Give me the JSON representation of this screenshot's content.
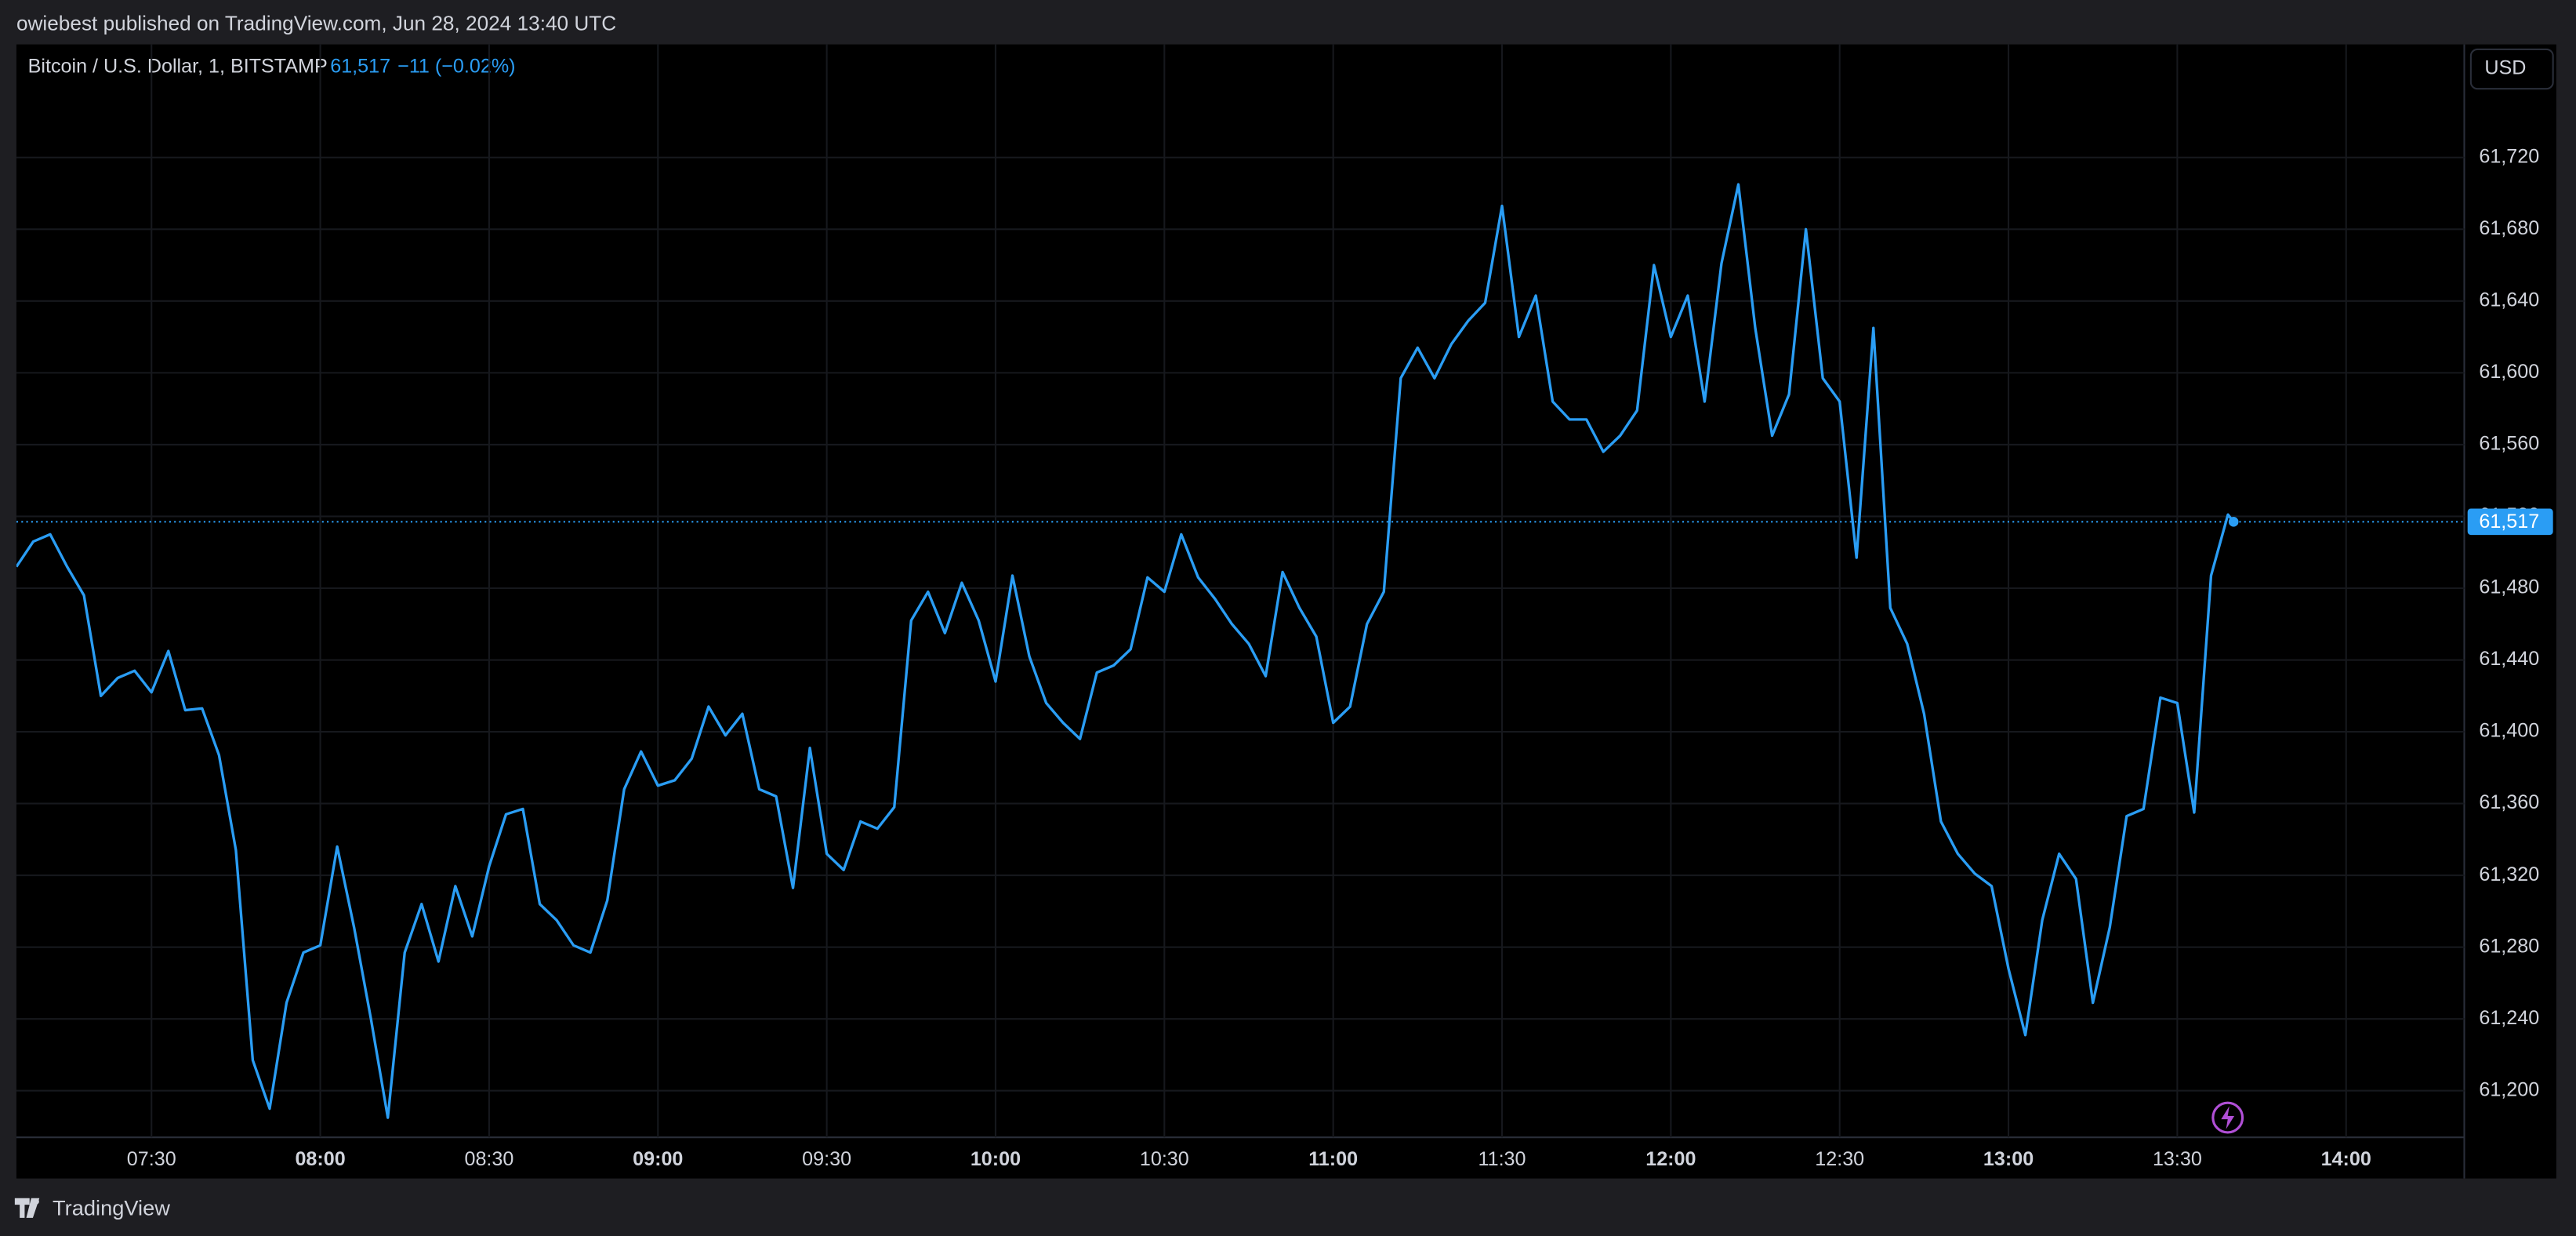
{
  "header": {
    "publisher": "owiebest published on TradingView.com, Jun 28, 2024 13:40 UTC"
  },
  "footer": {
    "brand": "TradingView"
  },
  "chart_data": {
    "type": "line",
    "symbol": "Bitcoin / U.S. Dollar, 1, BITSTAMP",
    "change": "−11 (−0.02%)",
    "currency": "USD",
    "color": "#2a9df4",
    "grid": true,
    "last_price": {
      "value": 61517,
      "label": "61,517"
    },
    "xlim": [
      "07:06",
      "14:21"
    ],
    "xticks": [
      "07:30",
      "08:00",
      "08:30",
      "09:00",
      "09:30",
      "10:00",
      "10:30",
      "11:00",
      "11:30",
      "12:00",
      "12:30",
      "13:00",
      "13:30",
      "14:00"
    ],
    "ylim": [
      61174,
      61783
    ],
    "yticks": [
      {
        "value": 61200,
        "label": "61,200"
      },
      {
        "value": 61240,
        "label": "61,240"
      },
      {
        "value": 61280,
        "label": "61,280"
      },
      {
        "value": 61320,
        "label": "61,320"
      },
      {
        "value": 61360,
        "label": "61,360"
      },
      {
        "value": 61400,
        "label": "61,400"
      },
      {
        "value": 61440,
        "label": "61,440"
      },
      {
        "value": 61480,
        "label": "61,480"
      },
      {
        "value": 61520,
        "label": "61,520"
      },
      {
        "value": 61560,
        "label": "61,560"
      },
      {
        "value": 61600,
        "label": "61,600"
      },
      {
        "value": 61640,
        "label": "61,640"
      },
      {
        "value": 61680,
        "label": "61,680"
      },
      {
        "value": 61720,
        "label": "61,720"
      }
    ],
    "x": [
      "07:06",
      "07:09",
      "07:12",
      "07:15",
      "07:18",
      "07:21",
      "07:24",
      "07:27",
      "07:30",
      "07:33",
      "07:36",
      "07:39",
      "07:42",
      "07:45",
      "07:48",
      "07:51",
      "07:54",
      "07:57",
      "08:00",
      "08:03",
      "08:06",
      "08:09",
      "08:12",
      "08:15",
      "08:18",
      "08:21",
      "08:24",
      "08:27",
      "08:30",
      "08:33",
      "08:36",
      "08:39",
      "08:42",
      "08:45",
      "08:48",
      "08:51",
      "08:54",
      "08:57",
      "09:00",
      "09:03",
      "09:06",
      "09:09",
      "09:12",
      "09:15",
      "09:18",
      "09:21",
      "09:24",
      "09:27",
      "09:30",
      "09:33",
      "09:36",
      "09:39",
      "09:42",
      "09:45",
      "09:48",
      "09:51",
      "09:54",
      "09:57",
      "10:00",
      "10:03",
      "10:06",
      "10:09",
      "10:12",
      "10:15",
      "10:18",
      "10:21",
      "10:24",
      "10:27",
      "10:30",
      "10:33",
      "10:36",
      "10:39",
      "10:42",
      "10:45",
      "10:48",
      "10:51",
      "10:54",
      "10:57",
      "11:00",
      "11:03",
      "11:06",
      "11:09",
      "11:12",
      "11:15",
      "11:18",
      "11:21",
      "11:24",
      "11:27",
      "11:30",
      "11:33",
      "11:36",
      "11:39",
      "11:42",
      "11:45",
      "11:48",
      "11:51",
      "11:54",
      "11:57",
      "12:00",
      "12:03",
      "12:06",
      "12:09",
      "12:12",
      "12:15",
      "12:18",
      "12:21",
      "12:24",
      "12:27",
      "12:30",
      "12:33",
      "12:36",
      "12:39",
      "12:42",
      "12:45",
      "12:48",
      "12:51",
      "12:54",
      "12:57",
      "13:00",
      "13:03",
      "13:06",
      "13:09",
      "13:12",
      "13:15",
      "13:18",
      "13:21",
      "13:24",
      "13:27",
      "13:30",
      "13:33",
      "13:36",
      "13:39",
      "13:40"
    ],
    "values": [
      61492,
      61506,
      61510,
      61492,
      61476,
      61420,
      61430,
      61434,
      61422,
      61445,
      61412,
      61413,
      61387,
      61334,
      61217,
      61190,
      61249,
      61277,
      61281,
      61336,
      61291,
      61240,
      61185,
      61277,
      61304,
      61272,
      61314,
      61286,
      61325,
      61354,
      61357,
      61304,
      61295,
      61281,
      61277,
      61306,
      61368,
      61389,
      61370,
      61373,
      61385,
      61414,
      61398,
      61410,
      61368,
      61364,
      61313,
      61391,
      61332,
      61323,
      61350,
      61346,
      61358,
      61462,
      61478,
      61455,
      61483,
      61462,
      61428,
      61487,
      61442,
      61416,
      61405,
      61396,
      61433,
      61437,
      61446,
      61486,
      61478,
      61510,
      61486,
      61474,
      61460,
      61449,
      61431,
      61489,
      61469,
      61453,
      61405,
      61414,
      61460,
      61478,
      61597,
      61614,
      61597,
      61616,
      61629,
      61639,
      61693,
      61620,
      61643,
      61584,
      61574,
      61574,
      61556,
      61565,
      61579,
      61660,
      61620,
      61643,
      61584,
      61661,
      61705,
      61625,
      61565,
      61588,
      61680,
      61597,
      61584,
      61497,
      61625,
      61469,
      61449,
      61410,
      61350,
      61332,
      61321,
      61314,
      61268,
      61231,
      61295,
      61332,
      61318,
      61249,
      61291,
      61353,
      61357,
      61419,
      61416,
      61355,
      61487,
      61521,
      61517
    ]
  }
}
